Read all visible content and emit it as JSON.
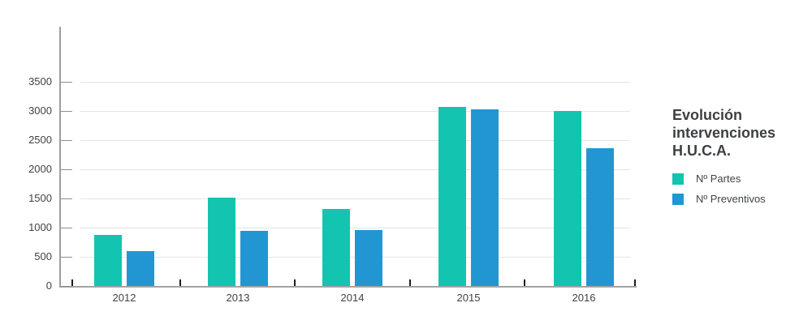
{
  "chart_data": {
    "type": "bar",
    "title": "Evolución intervenciones H.U.C.A.",
    "categories": [
      "2012",
      "2013",
      "2014",
      "2015",
      "2016"
    ],
    "series": [
      {
        "name": "Nº Partes",
        "color": "#13c5b0",
        "values": [
          875,
          1510,
          1320,
          3060,
          2990
        ]
      },
      {
        "name": "Nº Preventivos",
        "color": "#2296d3",
        "values": [
          590,
          940,
          955,
          3025,
          2350
        ]
      }
    ],
    "ylim": [
      0,
      3500
    ],
    "yticks": [
      0,
      500,
      1000,
      1500,
      2000,
      2500,
      3000,
      3500
    ],
    "grid": true,
    "legend_position": "right",
    "colors": {
      "background": "#ffffff",
      "axis": "#9e9e9e",
      "gridline": "#e4e4e4",
      "axis_label": "#424242",
      "title": "#3c4043",
      "x_tick": "#1c1c1c"
    }
  }
}
